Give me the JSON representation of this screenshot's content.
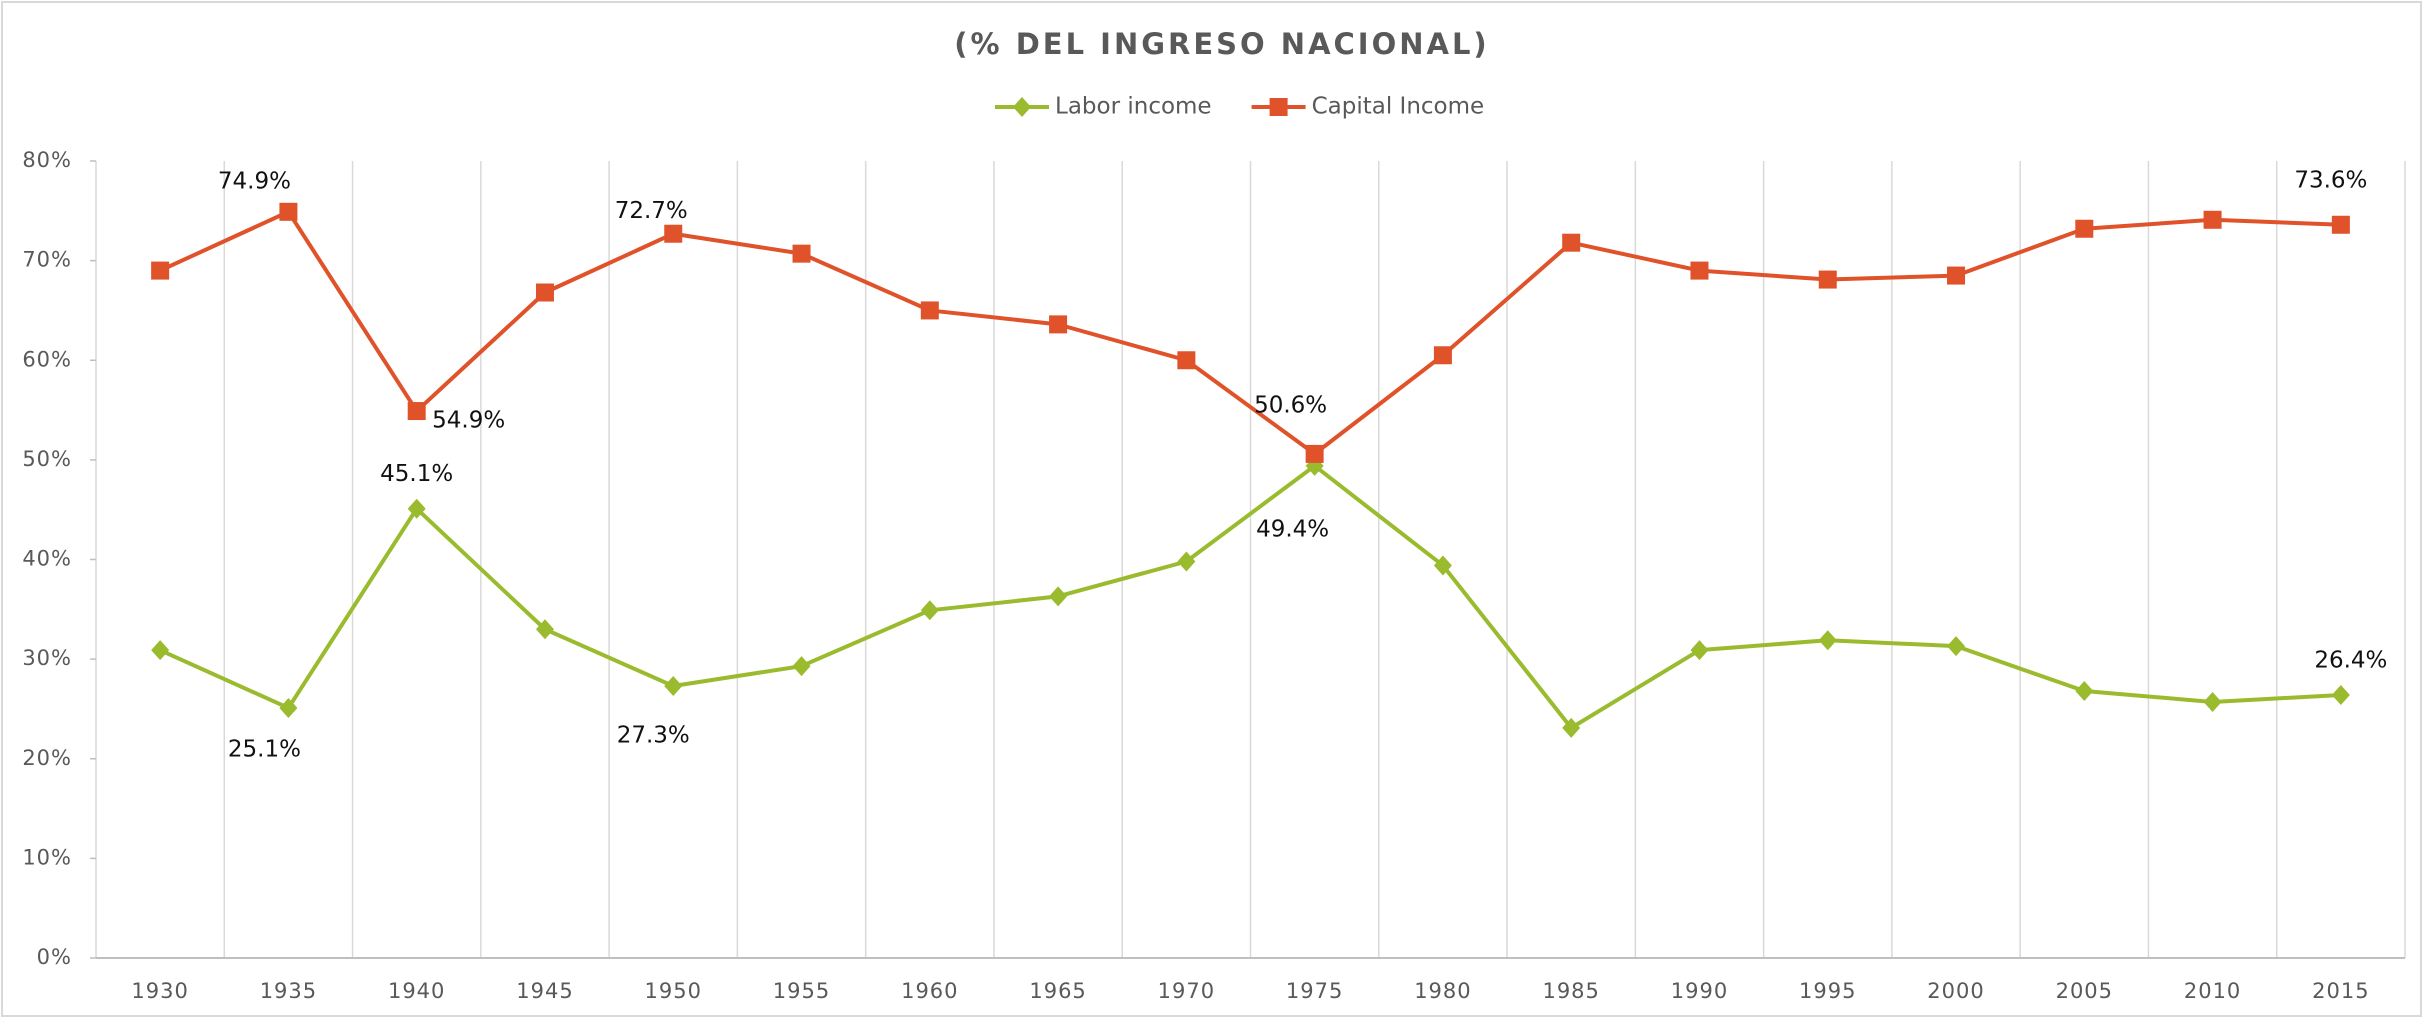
{
  "chart_data": {
    "type": "line",
    "title": "(% DEL INGRESO NACIONAL)",
    "categories": [
      "1930",
      "1935",
      "1940",
      "1945",
      "1950",
      "1955",
      "1960",
      "1965",
      "1970",
      "1975",
      "1980",
      "1985",
      "1990",
      "1995",
      "2000",
      "2005",
      "2010",
      "2015"
    ],
    "series": [
      {
        "name": "Labor income",
        "color": "#9bbb2f",
        "marker": "diamond",
        "values": [
          30.9,
          25.1,
          45.1,
          33.0,
          27.3,
          29.3,
          34.9,
          36.3,
          39.8,
          49.4,
          39.4,
          23.1,
          30.9,
          31.9,
          31.3,
          26.8,
          25.7,
          26.4
        ],
        "value_labels": [
          null,
          "25.1%",
          "45.1%",
          null,
          "27.3%",
          null,
          null,
          null,
          null,
          "49.4%",
          null,
          null,
          null,
          null,
          null,
          null,
          null,
          "26.4%"
        ]
      },
      {
        "name": "Capital Income",
        "color": "#e0522a",
        "marker": "square",
        "values": [
          69.0,
          74.9,
          54.9,
          66.8,
          72.7,
          70.7,
          65.0,
          63.6,
          60.0,
          50.6,
          60.5,
          71.8,
          69.0,
          68.1,
          68.5,
          73.2,
          74.1,
          73.6
        ],
        "value_labels": [
          null,
          "74.9%",
          "54.9%",
          null,
          "72.7%",
          null,
          null,
          null,
          null,
          "50.6%",
          null,
          null,
          null,
          null,
          null,
          null,
          null,
          "73.6%"
        ]
      }
    ],
    "ylim": [
      0,
      80
    ],
    "yticks": [
      {
        "value": 0,
        "label": "0%"
      },
      {
        "value": 10,
        "label": "10%"
      },
      {
        "value": 20,
        "label": "20%"
      },
      {
        "value": 30,
        "label": "30%"
      },
      {
        "value": 40,
        "label": "40%"
      },
      {
        "value": 50,
        "label": "50%"
      },
      {
        "value": 60,
        "label": "60%"
      },
      {
        "value": 70,
        "label": "70%"
      },
      {
        "value": 80,
        "label": "80%"
      }
    ],
    "grid": "x",
    "legend": "top"
  }
}
